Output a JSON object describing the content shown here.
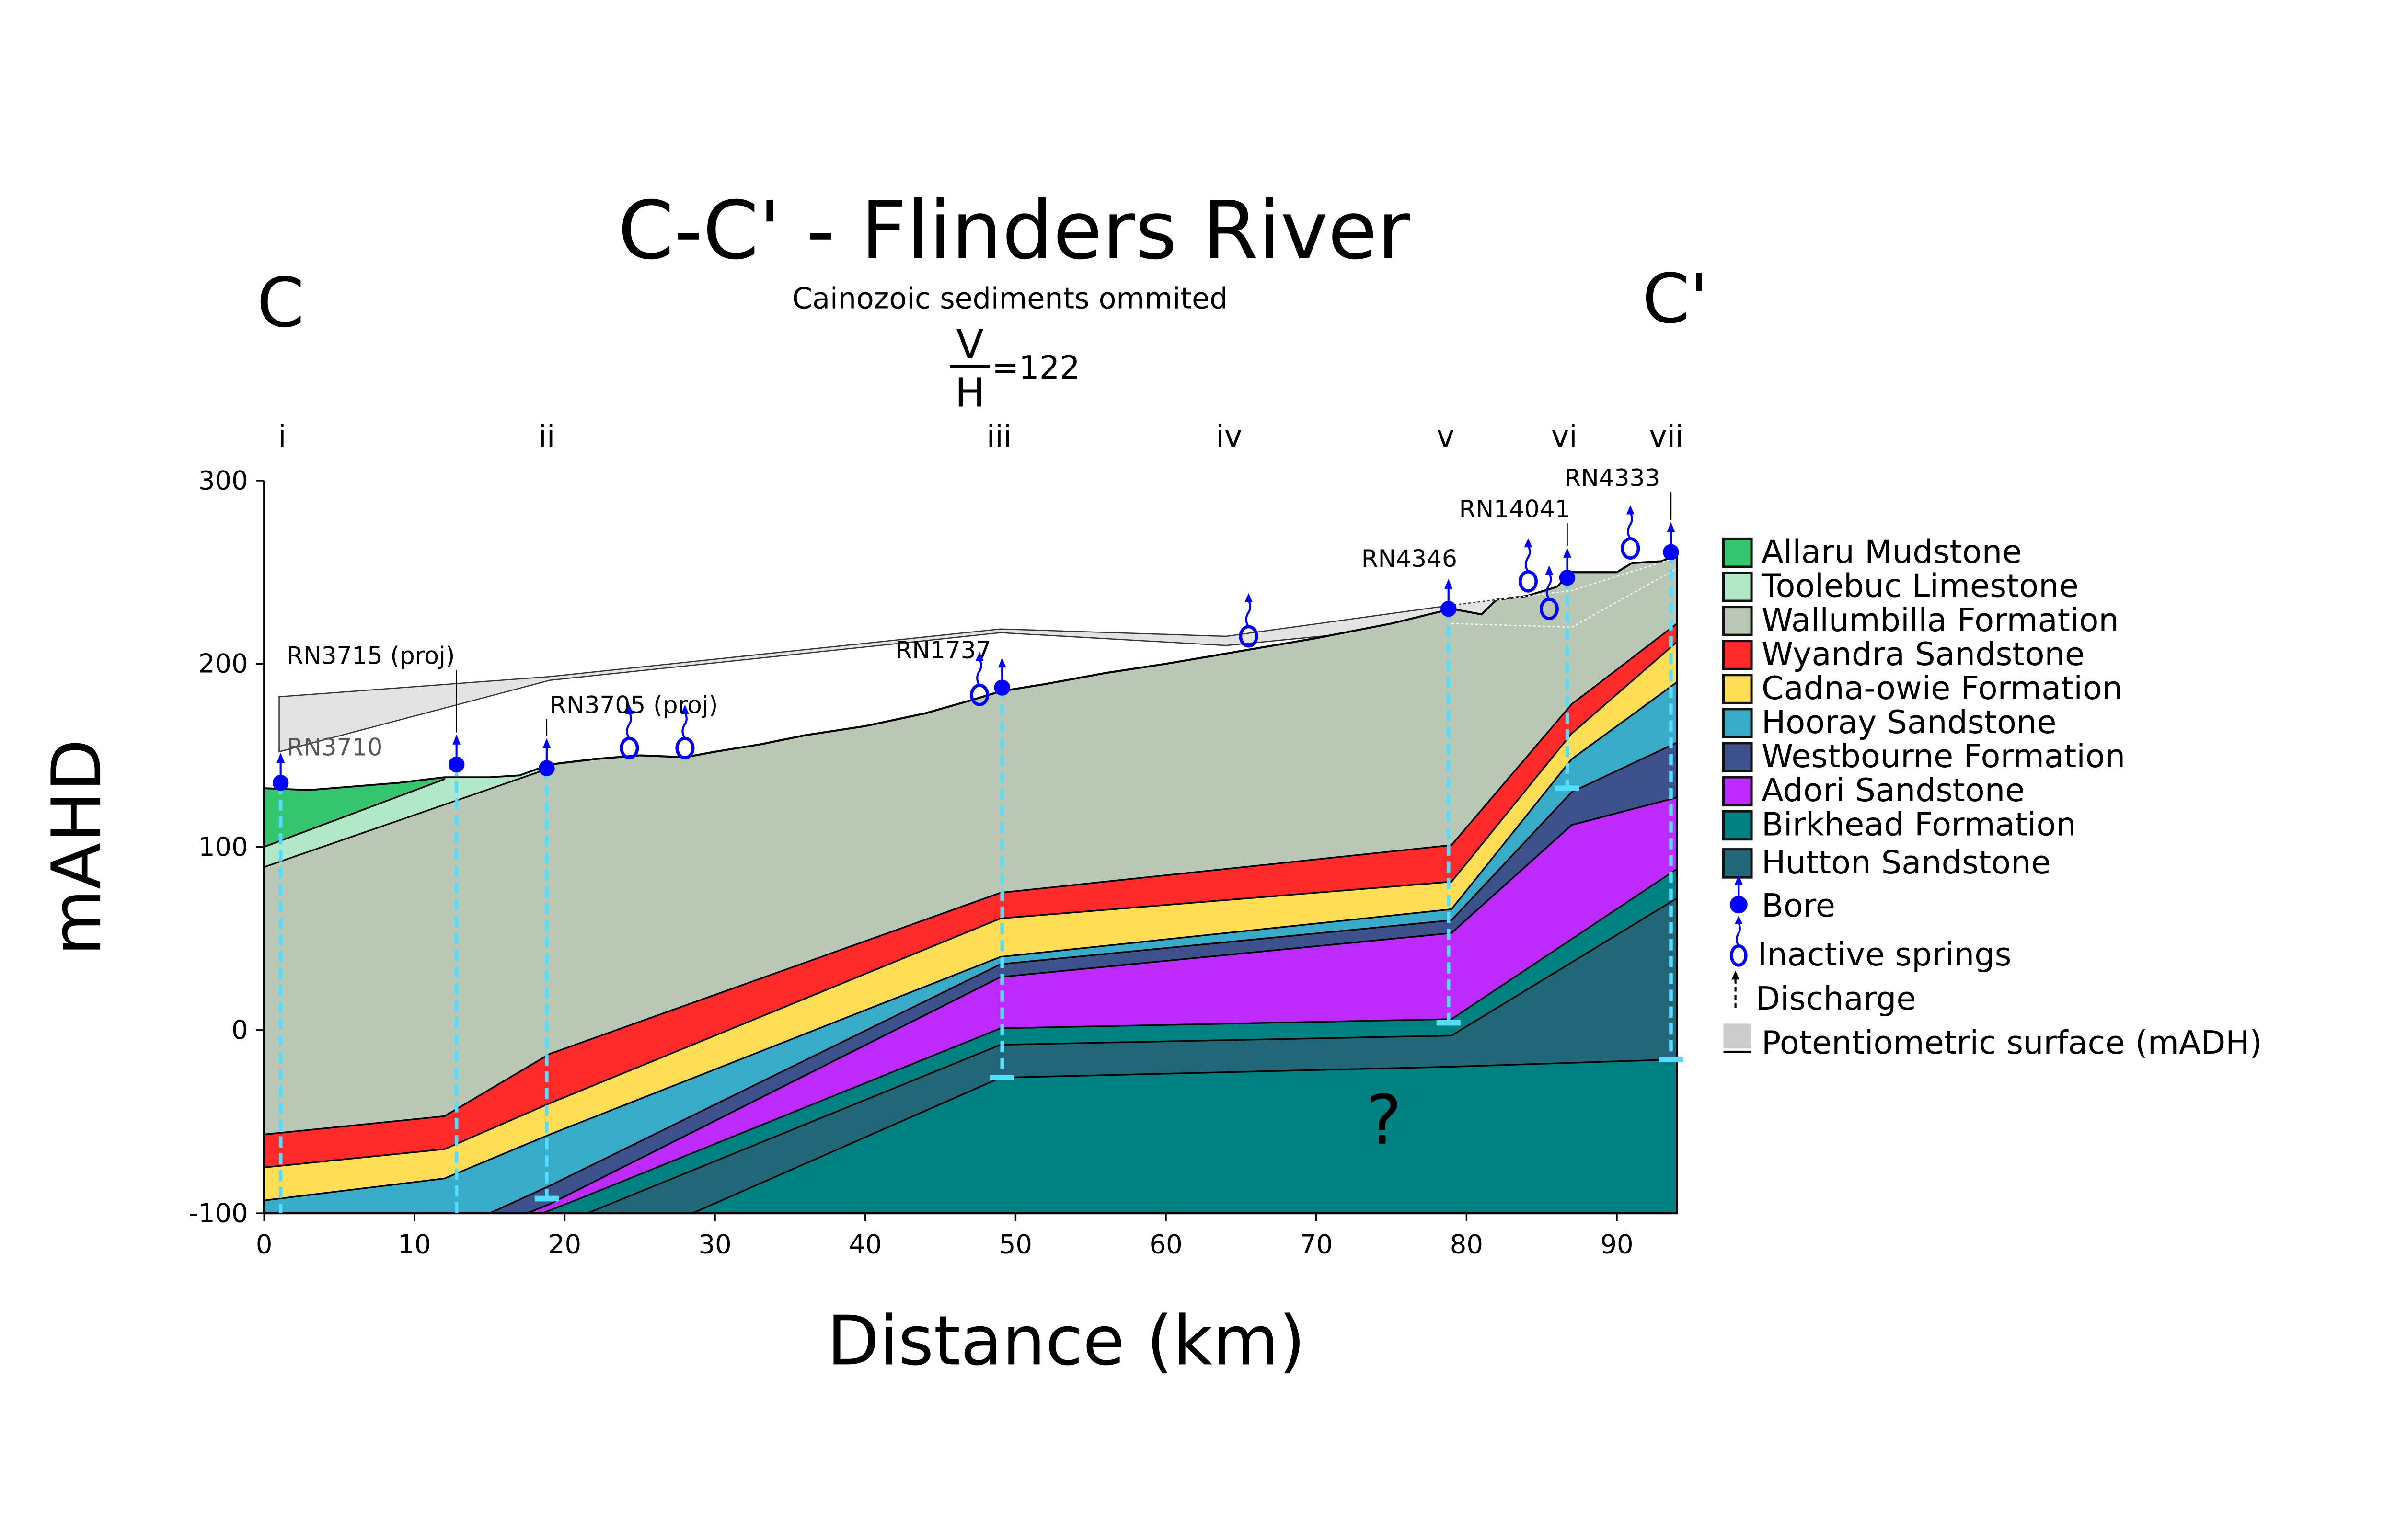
{
  "chart_data": {
    "type": "area",
    "title": "C-C' - Flinders River",
    "subtitle": "Cainozoic sediments ommited",
    "ratio": {
      "numerator": "V",
      "denominator": "H",
      "value": "=122"
    },
    "end_labels": {
      "left": "C",
      "right": "C'"
    },
    "xlabel": "Distance (km)",
    "ylabel": "mAHD",
    "xlim": [
      0,
      94
    ],
    "ylim": [
      -100,
      300
    ],
    "xticks": [
      0,
      10,
      20,
      30,
      40,
      50,
      60,
      70,
      80,
      90
    ],
    "yticks": [
      300,
      200,
      100,
      0,
      -100
    ],
    "unknown_marker": {
      "text": "?",
      "x": 74.5,
      "y": -62
    },
    "section_labels": [
      {
        "t": "i",
        "x": 1.2
      },
      {
        "t": "ii",
        "x": 18.8
      },
      {
        "t": "iii",
        "x": 48.9
      },
      {
        "t": "iv",
        "x": 64.2
      },
      {
        "t": "v",
        "x": 78.6
      },
      {
        "t": "vi",
        "x": 86.5
      },
      {
        "t": "vii",
        "x": 93.3
      }
    ],
    "surface": [
      [
        0,
        132
      ],
      [
        3,
        131
      ],
      [
        6,
        133
      ],
      [
        9,
        135
      ],
      [
        12,
        138
      ],
      [
        15,
        138
      ],
      [
        17,
        139
      ],
      [
        19,
        145
      ],
      [
        22,
        148
      ],
      [
        25,
        150
      ],
      [
        28,
        149
      ],
      [
        30,
        152
      ],
      [
        33,
        156
      ],
      [
        36,
        161
      ],
      [
        40,
        166
      ],
      [
        44,
        173
      ],
      [
        47,
        180
      ],
      [
        49,
        185
      ],
      [
        52,
        189
      ],
      [
        56,
        195
      ],
      [
        60,
        200
      ],
      [
        65,
        207
      ],
      [
        70,
        214
      ],
      [
        75,
        222
      ],
      [
        79,
        230
      ],
      [
        81,
        227
      ],
      [
        82,
        235
      ],
      [
        84,
        237
      ],
      [
        86,
        242
      ],
      [
        87,
        250
      ],
      [
        90,
        250
      ],
      [
        91,
        255
      ],
      [
        93,
        256
      ],
      [
        94,
        260
      ]
    ],
    "potentiometric_upper": [
      [
        1,
        182
      ],
      [
        19,
        193
      ],
      [
        49,
        219
      ],
      [
        64,
        215
      ],
      [
        79,
        232
      ],
      [
        87,
        240
      ],
      [
        94,
        258
      ]
    ],
    "potentiometric_lower": [
      [
        1,
        152
      ],
      [
        19,
        191
      ],
      [
        49,
        217
      ],
      [
        64,
        210
      ],
      [
        79,
        222
      ],
      [
        87,
        220
      ],
      [
        94,
        252
      ]
    ],
    "units": [
      {
        "name": "Allaru Mudstone",
        "color": "#36c46f"
      },
      {
        "name": "Toolebuc Limestone",
        "color": "#b0e8c8"
      },
      {
        "name": "Wallumbilla Formation",
        "color": "#b8c8b4"
      },
      {
        "name": "Wyandra Sandstone",
        "color": "#ff2a2a",
        "top": [
          [
            0,
            -57
          ],
          [
            12,
            -47
          ],
          [
            19,
            -13
          ],
          [
            49,
            75
          ],
          [
            79,
            101
          ],
          [
            87,
            178
          ],
          [
            94,
            222
          ]
        ]
      },
      {
        "name": "Cadna-owie Formation",
        "color": "#ffdd55",
        "top": [
          [
            0,
            -75
          ],
          [
            12,
            -65
          ],
          [
            19,
            -40
          ],
          [
            49,
            61
          ],
          [
            79,
            81
          ],
          [
            87,
            162
          ],
          [
            94,
            212
          ]
        ]
      },
      {
        "name": "Hooray Sandstone",
        "color": "#37abc8",
        "top": [
          [
            0,
            -93
          ],
          [
            12,
            -81
          ],
          [
            19,
            -57
          ],
          [
            49,
            40
          ],
          [
            79,
            66
          ],
          [
            87,
            148
          ],
          [
            94,
            190
          ]
        ]
      },
      {
        "name": "Westbourne Formation",
        "color": "#3d518c",
        "top": [
          [
            15,
            -100
          ],
          [
            19,
            -85
          ],
          [
            49,
            36
          ],
          [
            79,
            60
          ],
          [
            87,
            130
          ],
          [
            94,
            157
          ]
        ]
      },
      {
        "name": "Adori Sandstone",
        "color": "#bc2aff",
        "top": [
          [
            17.5,
            -100
          ],
          [
            19,
            -95
          ],
          [
            49,
            29
          ],
          [
            79,
            53
          ],
          [
            87,
            112
          ],
          [
            94,
            127
          ]
        ]
      },
      {
        "name": "Birkhead Formation",
        "color": "#008080",
        "top": [
          [
            18.5,
            -100
          ],
          [
            21,
            -92
          ],
          [
            49,
            1
          ],
          [
            79,
            6
          ],
          [
            94,
            88
          ]
        ]
      },
      {
        "name": "Hutton Sandstone",
        "color": "#216778",
        "top": [
          [
            21.5,
            -100
          ],
          [
            49,
            -8
          ],
          [
            79,
            -3
          ],
          [
            94,
            72
          ]
        ],
        "base": [
          [
            28.5,
            -100
          ],
          [
            49,
            -26
          ],
          [
            79,
            -20
          ],
          [
            94,
            -16
          ]
        ]
      }
    ],
    "allaru_base": [
      [
        0,
        100
      ],
      [
        12,
        137
      ]
    ],
    "toolebuc_base": [
      [
        0,
        89
      ],
      [
        19,
        143
      ]
    ],
    "bores": [
      {
        "name": "RN3710",
        "x": 1.1,
        "level": 135,
        "bottom": -100
      },
      {
        "name": "RN3715 (proj)",
        "x": 12.8,
        "level": 145,
        "bottom": -100
      },
      {
        "name": "RN3705 (proj)",
        "x": 18.8,
        "level": 143,
        "bottom": -92
      },
      {
        "name": "RN1737",
        "x": 49.1,
        "level": 187,
        "bottom": -26
      },
      {
        "name": "RN4346",
        "x": 78.8,
        "level": 230,
        "bottom": 4
      },
      {
        "name": "RN14041",
        "x": 86.7,
        "level": 247,
        "bottom": 132
      },
      {
        "name": "RN4333",
        "x": 93.6,
        "level": 261,
        "bottom": -16
      }
    ],
    "springs": [
      {
        "x": 24.3,
        "y": 154
      },
      {
        "x": 28,
        "y": 154
      },
      {
        "x": 47.6,
        "y": 183
      },
      {
        "x": 65.5,
        "y": 215
      },
      {
        "x": 84.1,
        "y": 245
      },
      {
        "x": 85.5,
        "y": 230
      },
      {
        "x": 90.9,
        "y": 263
      }
    ],
    "legend": {
      "placement": "right",
      "symbols": [
        {
          "label": "Bore",
          "icon": "bore-icon",
          "color": "#0000ff"
        },
        {
          "label": "Inactive springs",
          "icon": "spring-icon",
          "color": "#0000ff"
        },
        {
          "label": "Discharge",
          "icon": "discharge-arrow-icon",
          "color": "#000000"
        },
        {
          "label": "Potentiometric surface (mADH)",
          "icon": "potentiometric-swatch",
          "color": "#cccccc"
        }
      ]
    },
    "bore_line_color": "#55ddff"
  }
}
